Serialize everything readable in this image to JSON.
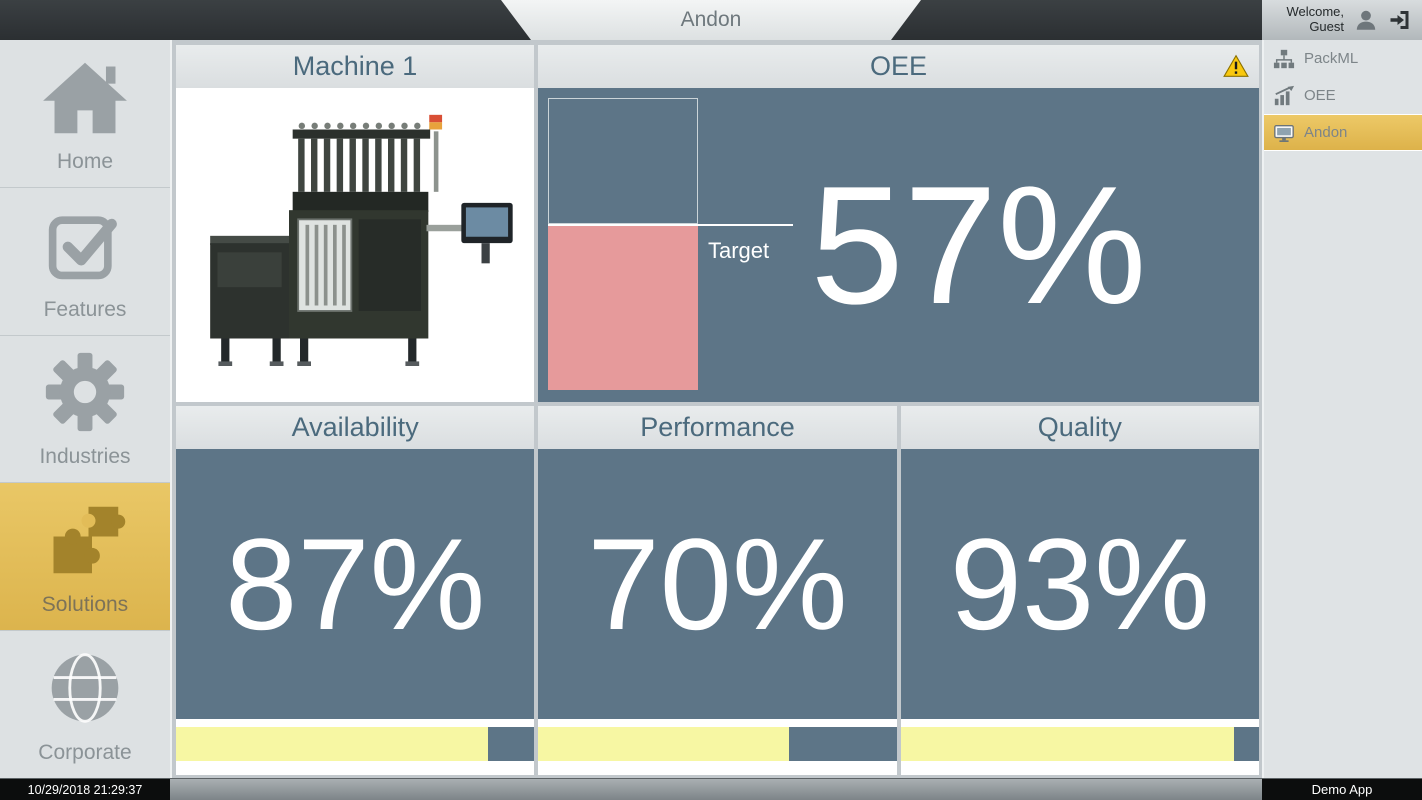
{
  "colors": {
    "accent_gold": "#e2bc58",
    "panel_slate": "#5d7587",
    "progress_yellow": "#f7f7a3",
    "oee_bar_pink": "#e69a9b",
    "warning_yellow": "#f9c80e",
    "header_text_slate": "#4b6a7d"
  },
  "top_bar": {
    "title": "Andon",
    "welcome_line1": "Welcome,",
    "welcome_line2": "Guest",
    "icons": [
      "user-icon",
      "logout-icon"
    ]
  },
  "left_sidebar": {
    "items": [
      {
        "label": "Home",
        "icon": "home-icon",
        "selected": false
      },
      {
        "label": "Features",
        "icon": "checkbox-icon",
        "selected": false
      },
      {
        "label": "Industries",
        "icon": "gear-icon",
        "selected": false
      },
      {
        "label": "Solutions",
        "icon": "puzzle-icon",
        "selected": true
      },
      {
        "label": "Corporate",
        "icon": "globe-icon",
        "selected": false
      }
    ]
  },
  "right_sidebar": {
    "items": [
      {
        "label": "PackML",
        "icon": "hierarchy-icon",
        "selected": false
      },
      {
        "label": "OEE",
        "icon": "bar-chart-icon",
        "selected": false
      },
      {
        "label": "Andon",
        "icon": "monitor-icon",
        "selected": true
      }
    ]
  },
  "main": {
    "machine_panel": {
      "title": "Machine 1",
      "image_alt": "industrial-packaging-machine-photo"
    },
    "oee_panel": {
      "title": "OEE",
      "value_label": "57%",
      "value_percent": 57,
      "target_label": "Target",
      "warning_visible": true
    },
    "metrics": [
      {
        "title": "Availability",
        "value_label": "87%",
        "progress_percent": 87
      },
      {
        "title": "Performance",
        "value_label": "70%",
        "progress_percent": 70
      },
      {
        "title": "Quality",
        "value_label": "93%",
        "progress_percent": 93
      }
    ]
  },
  "status_bar": {
    "timestamp": "10/29/2018 21:29:37",
    "app_label": "Demo App"
  }
}
